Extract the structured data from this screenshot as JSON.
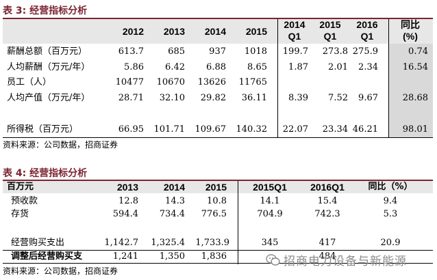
{
  "table3": {
    "title": "表 3:   经营指标分析",
    "headers": [
      "2012",
      "2013",
      "2014",
      "2015",
      "2014\nQ1",
      "2015\nQ1",
      "2016\nQ1",
      "同比\n(%)"
    ],
    "rows": [
      {
        "label": "薪酬总额（百万元）",
        "values": [
          "613.7",
          "685",
          "937",
          "1018",
          "199.7",
          "273.8",
          "275.9",
          "0.74"
        ]
      },
      {
        "label": "人均薪酬（万元/年）",
        "values": [
          "5.86",
          "6.42",
          "6.88",
          "8.65",
          "1.87",
          "2.01",
          "2.34",
          "16.54"
        ]
      },
      {
        "label": "员工（人）",
        "values": [
          "10477",
          "10670",
          "13626",
          "11765",
          "",
          "",
          "",
          ""
        ]
      },
      {
        "label": "人均产值（万元/年）",
        "values": [
          "28.71",
          "32.10",
          "29.82",
          "36.11",
          "8.39",
          "7.52",
          "9.67",
          "28.68"
        ]
      },
      {
        "label": "所得税（百万元）",
        "values": [
          "66.95",
          "101.71",
          "109.67",
          "140.32",
          "22.07",
          "23.34",
          "46.21",
          "98.01"
        ]
      }
    ],
    "source": "资料来源：公司数据，招商证券"
  },
  "table4": {
    "title": "表 4:   经营指标分析",
    "headers": [
      "百万元",
      "2013",
      "2014",
      "2015",
      "2015Q1",
      "2016Q1",
      "同比（%）"
    ],
    "rows": [
      {
        "label": "预收款",
        "values": [
          "12.8",
          "14.3",
          "10.8",
          "14.1",
          "15.4",
          "9.4"
        ]
      },
      {
        "label": "存货",
        "values": [
          "594.4",
          "734.4",
          "776.5",
          "704.9",
          "742.3",
          "5.3"
        ]
      },
      {
        "label": "经营购买支出",
        "values": [
          "1,142.7",
          "1,325.4",
          "1,733.9",
          "345",
          "417",
          "20.9"
        ]
      },
      {
        "label": "调整后经营购买支",
        "values": [
          "1,241",
          "1,350",
          "1,836",
          "",
          "484",
          ""
        ]
      }
    ],
    "source": "资料来源：公司数据，招商证券"
  },
  "watermark": "招商电力设备与新能源",
  "colors": {
    "title": "#7a2330",
    "header_bg": "#e7e7e7",
    "highlight": "#d9d9d9"
  }
}
